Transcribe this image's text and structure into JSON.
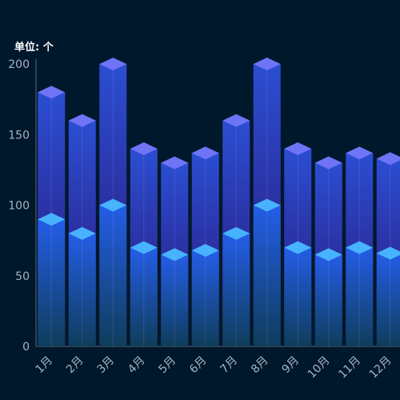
{
  "chart_data": {
    "type": "bar",
    "unit_label": "单位: 个",
    "categories": [
      "1月",
      "2月",
      "3月",
      "4月",
      "5月",
      "6月",
      "7月",
      "8月",
      "9月",
      "10月",
      "11月",
      "12月"
    ],
    "series": [
      {
        "values": [
          180,
          160,
          200,
          140,
          130,
          137,
          160,
          200,
          140,
          130,
          137,
          133
        ]
      },
      {
        "values": [
          90,
          80,
          100,
          70,
          65,
          68,
          80,
          100,
          70,
          65,
          70,
          66
        ]
      }
    ],
    "yticks": [
      0,
      50,
      100,
      150,
      200
    ],
    "ylim": [
      0,
      200
    ],
    "colors": {
      "background": "#00182b",
      "back_top": "#6f74f6",
      "back_body_top": "#2b4ed2",
      "back_body_bottom": "#18184a",
      "front_top": "#47b3ff",
      "front_body_top": "#245de8",
      "front_body_bottom": "#0f3d5b",
      "axis": "#5f6d7a",
      "tick_text": "#a7b3c4"
    }
  }
}
